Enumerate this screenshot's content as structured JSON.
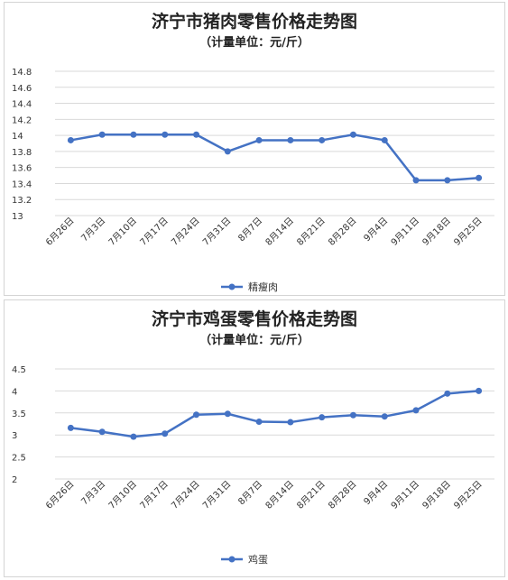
{
  "colors": {
    "series": "#4472C4",
    "grid": "#d9d9d9",
    "text": "#333333"
  },
  "chart_data": [
    {
      "type": "line",
      "title": "济宁市猪肉零售价格走势图",
      "subtitle": "（计量单位：元/斤）",
      "x": [
        "6月26日",
        "7月3日",
        "7月10日",
        "7月17日",
        "7月24日",
        "7月31日",
        "8月7日",
        "8月14日",
        "8月21日",
        "8月28日",
        "9月4日",
        "9月11日",
        "9月18日",
        "9月25日"
      ],
      "ylim": [
        13,
        14.8
      ],
      "yticks": [
        "13",
        "13.2",
        "13.4",
        "13.6",
        "13.8",
        "14",
        "14.2",
        "14.4",
        "14.6",
        "14.8"
      ],
      "grid": true,
      "legend_position": "bottom",
      "series": [
        {
          "name": "精瘦肉",
          "values": [
            13.94,
            14.01,
            14.01,
            14.01,
            14.01,
            13.8,
            13.94,
            13.94,
            13.94,
            14.01,
            13.94,
            13.44,
            13.44,
            13.47
          ]
        }
      ]
    },
    {
      "type": "line",
      "title": "济宁市鸡蛋零售价格走势图",
      "subtitle": "（计量单位：元/斤）",
      "x": [
        "6月26日",
        "7月3日",
        "7月10日",
        "7月17日",
        "7月24日",
        "7月31日",
        "8月7日",
        "8月14日",
        "8月21日",
        "8月28日",
        "9月4日",
        "9月11日",
        "9月18日",
        "9月25日"
      ],
      "ylim": [
        2,
        4.5
      ],
      "yticks": [
        "2",
        "2.5",
        "3",
        "3.5",
        "4",
        "4.5"
      ],
      "grid": true,
      "legend_position": "bottom",
      "series": [
        {
          "name": "鸡蛋",
          "values": [
            3.16,
            3.07,
            2.96,
            3.03,
            3.46,
            3.48,
            3.3,
            3.29,
            3.4,
            3.45,
            3.42,
            3.56,
            3.94,
            4.0
          ]
        }
      ]
    }
  ]
}
